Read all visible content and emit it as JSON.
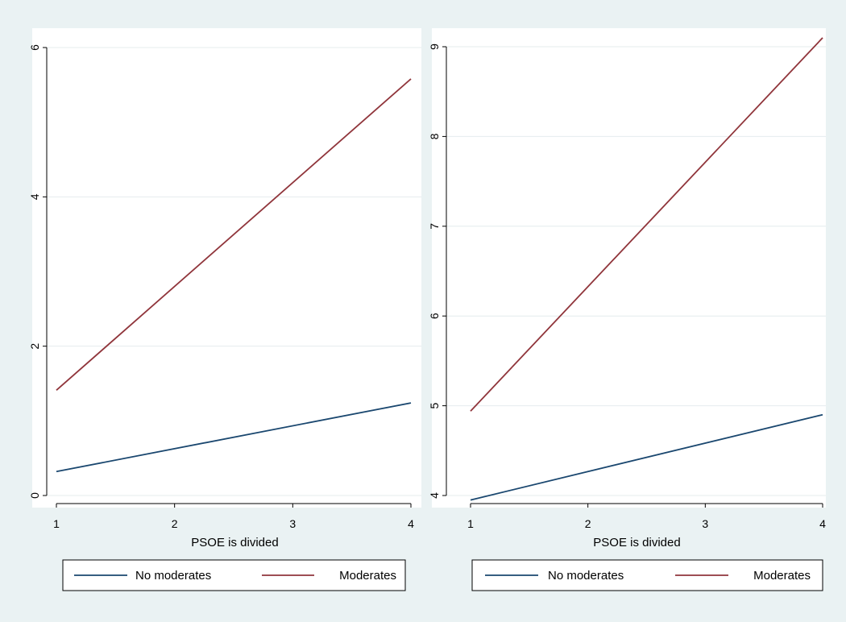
{
  "colors": {
    "background": "#eaf2f3",
    "plot_bg": "#ffffff",
    "grid": "#e4ecee",
    "no_moderates": "#1a476f",
    "moderates": "#90353b"
  },
  "chart_data": [
    {
      "type": "line",
      "title": "",
      "xlabel": "PSOE is divided",
      "ylabel": "",
      "xlim": [
        1,
        4
      ],
      "ylim": [
        0,
        6
      ],
      "xticks": [
        1,
        2,
        3,
        4
      ],
      "yticks": [
        0,
        2,
        4,
        6
      ],
      "grid": true,
      "legend": "bottom",
      "series": [
        {
          "name": "No moderates",
          "color": "#1a476f",
          "x": [
            1,
            4
          ],
          "y": [
            0.32,
            1.24
          ]
        },
        {
          "name": "Moderates",
          "color": "#90353b",
          "x": [
            1,
            4
          ],
          "y": [
            1.41,
            5.58
          ]
        }
      ]
    },
    {
      "type": "line",
      "title": "",
      "xlabel": "PSOE is divided",
      "ylabel": "",
      "xlim": [
        1,
        4
      ],
      "ylim": [
        4,
        9
      ],
      "xticks": [
        1,
        2,
        3,
        4
      ],
      "yticks": [
        4,
        5,
        6,
        7,
        8,
        9
      ],
      "grid": true,
      "legend": "bottom",
      "series": [
        {
          "name": "No moderates",
          "color": "#1a476f",
          "x": [
            1,
            4
          ],
          "y": [
            3.95,
            4.9
          ]
        },
        {
          "name": "Moderates",
          "color": "#90353b",
          "x": [
            1,
            4
          ],
          "y": [
            4.94,
            9.1
          ]
        }
      ]
    }
  ]
}
